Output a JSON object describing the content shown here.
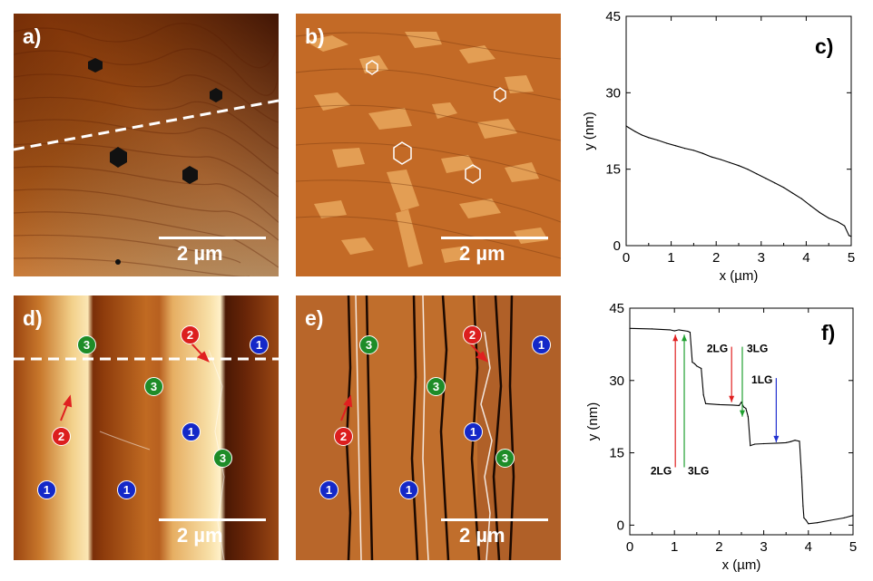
{
  "panels": {
    "a": {
      "label": "a)",
      "scalebar": "2 µm"
    },
    "b": {
      "label": "b)",
      "scalebar": "2 µm"
    },
    "c": {
      "label": "c)"
    },
    "d": {
      "label": "d)",
      "scalebar": "2 µm"
    },
    "e": {
      "label": "e)",
      "scalebar": "2 µm"
    },
    "f": {
      "label": "f)"
    }
  },
  "layer_markers": {
    "d": [
      "3",
      "2",
      "1",
      "3",
      "2",
      "1",
      "3",
      "1",
      "1"
    ],
    "e": [
      "3",
      "2",
      "1",
      "3",
      "2",
      "1",
      "3",
      "1",
      "1"
    ]
  },
  "colors": {
    "marker_1": "#1428c8",
    "marker_2": "#dc1e1e",
    "marker_3": "#1e8c28",
    "arrow_red": "#e02020",
    "arrow_green": "#20a030",
    "arrow_blue": "#2030d0"
  },
  "chart_data": [
    {
      "type": "line",
      "panel": "c",
      "xlabel": "x (µm)",
      "ylabel": "y (nm)",
      "xlim": [
        0,
        5
      ],
      "ylim": [
        0,
        45
      ],
      "xticks": [
        "0",
        "1",
        "2",
        "3",
        "4",
        "5"
      ],
      "yticks": [
        "0",
        "15",
        "30",
        "45"
      ],
      "series": [
        {
          "x": [
            0,
            0.05,
            0.2,
            0.35,
            0.5,
            0.7,
            0.9,
            1.1,
            1.3,
            1.5,
            1.7,
            1.9,
            2.1,
            2.3,
            2.5,
            2.7,
            2.9,
            3.1,
            3.3,
            3.5,
            3.7,
            3.9,
            4.1,
            4.3,
            4.5,
            4.7,
            4.85,
            4.95,
            5.0
          ],
          "y": [
            23.5,
            23.2,
            22.4,
            21.7,
            21.2,
            20.7,
            20.1,
            19.6,
            19.1,
            18.7,
            18.1,
            17.4,
            16.9,
            16.3,
            15.7,
            15.0,
            14.1,
            13.2,
            12.3,
            11.4,
            10.3,
            9.2,
            7.8,
            6.5,
            5.4,
            4.7,
            3.9,
            2.0,
            1.8
          ]
        }
      ]
    },
    {
      "type": "line",
      "panel": "f",
      "xlabel": "x (µm)",
      "ylabel": "y (nm)",
      "xlim": [
        0,
        5
      ],
      "ylim": [
        -2,
        45
      ],
      "xticks": [
        "0",
        "1",
        "2",
        "3",
        "4",
        "5"
      ],
      "yticks": [
        "0",
        "15",
        "30",
        "45"
      ],
      "series": [
        {
          "x": [
            0,
            0.5,
            0.9,
            1.0,
            1.1,
            1.3,
            1.35,
            1.4,
            1.45,
            1.5,
            1.6,
            1.65,
            1.7,
            2.0,
            2.3,
            2.45,
            2.5,
            2.55,
            2.6,
            2.65,
            2.7,
            2.8,
            3.0,
            3.3,
            3.5,
            3.6,
            3.7,
            3.8,
            3.85,
            3.88,
            3.9,
            3.95,
            4.0,
            4.2,
            4.5,
            4.8,
            5.0
          ],
          "y": [
            40.8,
            40.7,
            40.5,
            40.3,
            40.5,
            40.2,
            40.0,
            33.8,
            33.5,
            33.0,
            32.5,
            27.0,
            25.2,
            25.0,
            24.9,
            24.8,
            25.5,
            24.5,
            24.2,
            22.5,
            16.5,
            16.8,
            16.9,
            17.0,
            17.1,
            17.3,
            17.6,
            17.4,
            10.0,
            4.0,
            1.5,
            1.0,
            0.3,
            0.5,
            1.0,
            1.5,
            2.0
          ]
        }
      ],
      "annotations": [
        {
          "text": "2LG",
          "x": 1.02,
          "y_from": 12.0,
          "y_to": 39.5,
          "color": "arrow_red"
        },
        {
          "text": "3LG",
          "x": 1.22,
          "y_from": 12.0,
          "y_to": 39.5,
          "color": "arrow_green"
        },
        {
          "text": "2LG",
          "x": 2.28,
          "y_from": 37.0,
          "y_to": 25.5,
          "color": "arrow_red"
        },
        {
          "text": "3LG",
          "x": 2.52,
          "y_from": 37.0,
          "y_to": 22.5,
          "color": "arrow_green"
        },
        {
          "text": "1LG",
          "x": 3.28,
          "y_from": 30.5,
          "y_to": 17.2,
          "color": "arrow_blue"
        }
      ]
    }
  ]
}
